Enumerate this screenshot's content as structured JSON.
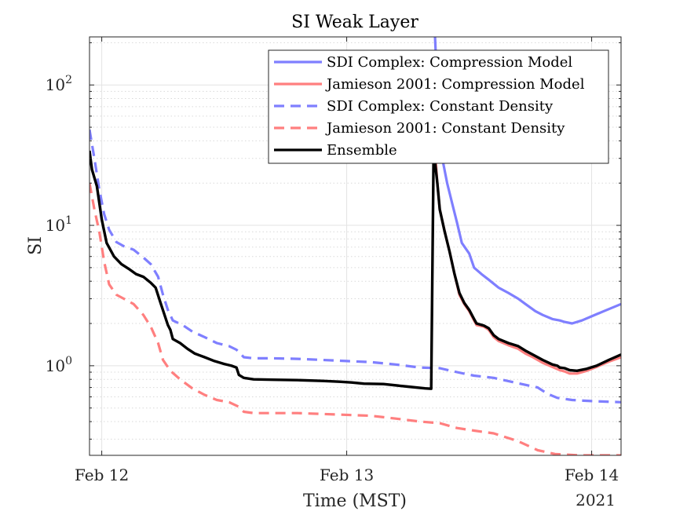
{
  "chart_data": {
    "type": "line",
    "title": "SI Weak Layer",
    "xlabel": "Time (MST)",
    "ylabel": "SI",
    "x_year_label": "2021",
    "yscale": "log",
    "xlim": [
      -0.05,
      2.12
    ],
    "ylim": [
      0.23,
      220
    ],
    "grid": true,
    "legend_position": "top-right",
    "x_ticks": [
      {
        "value": 0,
        "label": "Feb 12"
      },
      {
        "value": 1,
        "label": "Feb 13"
      },
      {
        "value": 2,
        "label": "Feb 14"
      }
    ],
    "y_ticks": [
      {
        "value": 1,
        "base": "10",
        "exp": "0"
      },
      {
        "value": 10,
        "base": "10",
        "exp": "1"
      },
      {
        "value": 100,
        "base": "10",
        "exp": "2"
      }
    ],
    "series": [
      {
        "name": "SDI Complex: Compression Model",
        "color": "#7f7fff",
        "dash": "solid",
        "points": [
          [
            1.36,
            230
          ],
          [
            1.375,
            60
          ],
          [
            1.39,
            30
          ],
          [
            1.41,
            20
          ],
          [
            1.43,
            14.5
          ],
          [
            1.45,
            10.5
          ],
          [
            1.47,
            7.5
          ],
          [
            1.5,
            6.3
          ],
          [
            1.52,
            5.0
          ],
          [
            1.55,
            4.5
          ],
          [
            1.58,
            4.1
          ],
          [
            1.62,
            3.6
          ],
          [
            1.66,
            3.3
          ],
          [
            1.7,
            3.0
          ],
          [
            1.73,
            2.75
          ],
          [
            1.77,
            2.45
          ],
          [
            1.8,
            2.3
          ],
          [
            1.84,
            2.15
          ],
          [
            1.87,
            2.1
          ],
          [
            1.89,
            2.05
          ],
          [
            1.92,
            2.0
          ],
          [
            1.96,
            2.1
          ],
          [
            2.0,
            2.25
          ],
          [
            2.05,
            2.45
          ],
          [
            2.12,
            2.75
          ]
        ]
      },
      {
        "name": "Jamieson 2001: Compression Model",
        "color": "#ff7f7f",
        "dash": "solid",
        "points": [
          [
            1.36,
            35
          ],
          [
            1.37,
            20
          ],
          [
            1.38,
            13
          ],
          [
            1.4,
            9.0
          ],
          [
            1.42,
            6.5
          ],
          [
            1.44,
            4.5
          ],
          [
            1.46,
            3.2
          ],
          [
            1.48,
            2.75
          ],
          [
            1.5,
            2.45
          ],
          [
            1.52,
            2.1
          ],
          [
            1.53,
            1.95
          ],
          [
            1.56,
            1.9
          ],
          [
            1.58,
            1.8
          ],
          [
            1.6,
            1.6
          ],
          [
            1.62,
            1.5
          ],
          [
            1.66,
            1.4
          ],
          [
            1.7,
            1.32
          ],
          [
            1.73,
            1.22
          ],
          [
            1.76,
            1.15
          ],
          [
            1.8,
            1.05
          ],
          [
            1.84,
            0.98
          ],
          [
            1.87,
            0.93
          ],
          [
            1.89,
            0.91
          ],
          [
            1.91,
            0.88
          ],
          [
            1.94,
            0.88
          ],
          [
            1.98,
            0.92
          ],
          [
            2.02,
            0.98
          ],
          [
            2.07,
            1.07
          ],
          [
            2.12,
            1.15
          ]
        ]
      },
      {
        "name": "SDI Complex: Constant Density",
        "color": "#7f7fff",
        "dash": "dashed",
        "points": [
          [
            -0.05,
            48
          ],
          [
            -0.03,
            30
          ],
          [
            -0.01,
            18
          ],
          [
            0.01,
            12
          ],
          [
            0.03,
            9.3
          ],
          [
            0.06,
            7.6
          ],
          [
            0.09,
            7.1
          ],
          [
            0.13,
            6.7
          ],
          [
            0.17,
            5.9
          ],
          [
            0.2,
            5.3
          ],
          [
            0.23,
            4.3
          ],
          [
            0.25,
            3.2
          ],
          [
            0.27,
            2.5
          ],
          [
            0.29,
            2.1
          ],
          [
            0.33,
            1.95
          ],
          [
            0.37,
            1.75
          ],
          [
            0.42,
            1.6
          ],
          [
            0.47,
            1.45
          ],
          [
            0.52,
            1.38
          ],
          [
            0.55,
            1.3
          ],
          [
            0.58,
            1.15
          ],
          [
            0.62,
            1.13
          ],
          [
            0.7,
            1.13
          ],
          [
            0.8,
            1.12
          ],
          [
            0.9,
            1.1
          ],
          [
            1.0,
            1.08
          ],
          [
            1.1,
            1.06
          ],
          [
            1.2,
            1.02
          ],
          [
            1.3,
            0.97
          ],
          [
            1.38,
            0.96
          ],
          [
            1.45,
            0.9
          ],
          [
            1.52,
            0.85
          ],
          [
            1.6,
            0.82
          ],
          [
            1.7,
            0.75
          ],
          [
            1.78,
            0.7
          ],
          [
            1.82,
            0.63
          ],
          [
            1.86,
            0.59
          ],
          [
            1.92,
            0.57
          ],
          [
            2.0,
            0.56
          ],
          [
            2.12,
            0.55
          ]
        ]
      },
      {
        "name": "Jamieson 2001: Constant Density",
        "color": "#ff7f7f",
        "dash": "dashed",
        "points": [
          [
            -0.05,
            20
          ],
          [
            -0.03,
            13
          ],
          [
            -0.01,
            9
          ],
          [
            0.01,
            5.5
          ],
          [
            0.03,
            3.8
          ],
          [
            0.06,
            3.2
          ],
          [
            0.09,
            3.0
          ],
          [
            0.13,
            2.75
          ],
          [
            0.17,
            2.3
          ],
          [
            0.2,
            1.9
          ],
          [
            0.23,
            1.45
          ],
          [
            0.25,
            1.1
          ],
          [
            0.28,
            0.92
          ],
          [
            0.32,
            0.8
          ],
          [
            0.37,
            0.69
          ],
          [
            0.42,
            0.62
          ],
          [
            0.47,
            0.57
          ],
          [
            0.52,
            0.55
          ],
          [
            0.56,
            0.51
          ],
          [
            0.58,
            0.47
          ],
          [
            0.62,
            0.46
          ],
          [
            0.8,
            0.46
          ],
          [
            0.95,
            0.45
          ],
          [
            1.1,
            0.44
          ],
          [
            1.2,
            0.42
          ],
          [
            1.3,
            0.4
          ],
          [
            1.38,
            0.39
          ],
          [
            1.45,
            0.36
          ],
          [
            1.52,
            0.345
          ],
          [
            1.6,
            0.33
          ],
          [
            1.7,
            0.29
          ],
          [
            1.78,
            0.25
          ],
          [
            1.85,
            0.235
          ],
          [
            1.95,
            0.23
          ],
          [
            2.12,
            0.23
          ]
        ]
      },
      {
        "name": "Ensemble",
        "color": "#000000",
        "dash": "solid",
        "points": [
          [
            -0.05,
            34
          ],
          [
            -0.04,
            25
          ],
          [
            -0.02,
            19
          ],
          [
            0.0,
            11
          ],
          [
            0.02,
            7.5
          ],
          [
            0.05,
            6.0
          ],
          [
            0.08,
            5.3
          ],
          [
            0.11,
            4.9
          ],
          [
            0.14,
            4.5
          ],
          [
            0.17,
            4.3
          ],
          [
            0.2,
            3.9
          ],
          [
            0.22,
            3.6
          ],
          [
            0.24,
            2.8
          ],
          [
            0.26,
            2.2
          ],
          [
            0.27,
            1.95
          ],
          [
            0.28,
            1.8
          ],
          [
            0.29,
            1.55
          ],
          [
            0.32,
            1.45
          ],
          [
            0.35,
            1.32
          ],
          [
            0.38,
            1.22
          ],
          [
            0.42,
            1.15
          ],
          [
            0.46,
            1.08
          ],
          [
            0.5,
            1.03
          ],
          [
            0.53,
            1.0
          ],
          [
            0.55,
            0.97
          ],
          [
            0.56,
            0.86
          ],
          [
            0.58,
            0.82
          ],
          [
            0.62,
            0.8
          ],
          [
            0.7,
            0.795
          ],
          [
            0.8,
            0.79
          ],
          [
            0.9,
            0.78
          ],
          [
            0.97,
            0.77
          ],
          [
            1.02,
            0.76
          ],
          [
            1.07,
            0.745
          ],
          [
            1.15,
            0.74
          ],
          [
            1.25,
            0.71
          ],
          [
            1.32,
            0.69
          ],
          [
            1.345,
            0.685
          ],
          [
            1.355,
            35
          ],
          [
            1.37,
            20
          ],
          [
            1.38,
            13
          ],
          [
            1.4,
            9.0
          ],
          [
            1.42,
            6.5
          ],
          [
            1.44,
            4.5
          ],
          [
            1.46,
            3.3
          ],
          [
            1.48,
            2.8
          ],
          [
            1.5,
            2.5
          ],
          [
            1.52,
            2.15
          ],
          [
            1.53,
            2.0
          ],
          [
            1.56,
            1.93
          ],
          [
            1.58,
            1.85
          ],
          [
            1.6,
            1.65
          ],
          [
            1.62,
            1.55
          ],
          [
            1.66,
            1.45
          ],
          [
            1.7,
            1.38
          ],
          [
            1.73,
            1.28
          ],
          [
            1.76,
            1.2
          ],
          [
            1.8,
            1.1
          ],
          [
            1.84,
            1.02
          ],
          [
            1.86,
            1.0
          ],
          [
            1.87,
            0.97
          ],
          [
            1.89,
            0.96
          ],
          [
            1.91,
            0.93
          ],
          [
            1.94,
            0.92
          ],
          [
            1.98,
            0.95
          ],
          [
            2.02,
            1.0
          ],
          [
            2.07,
            1.1
          ],
          [
            2.12,
            1.2
          ]
        ]
      }
    ]
  }
}
